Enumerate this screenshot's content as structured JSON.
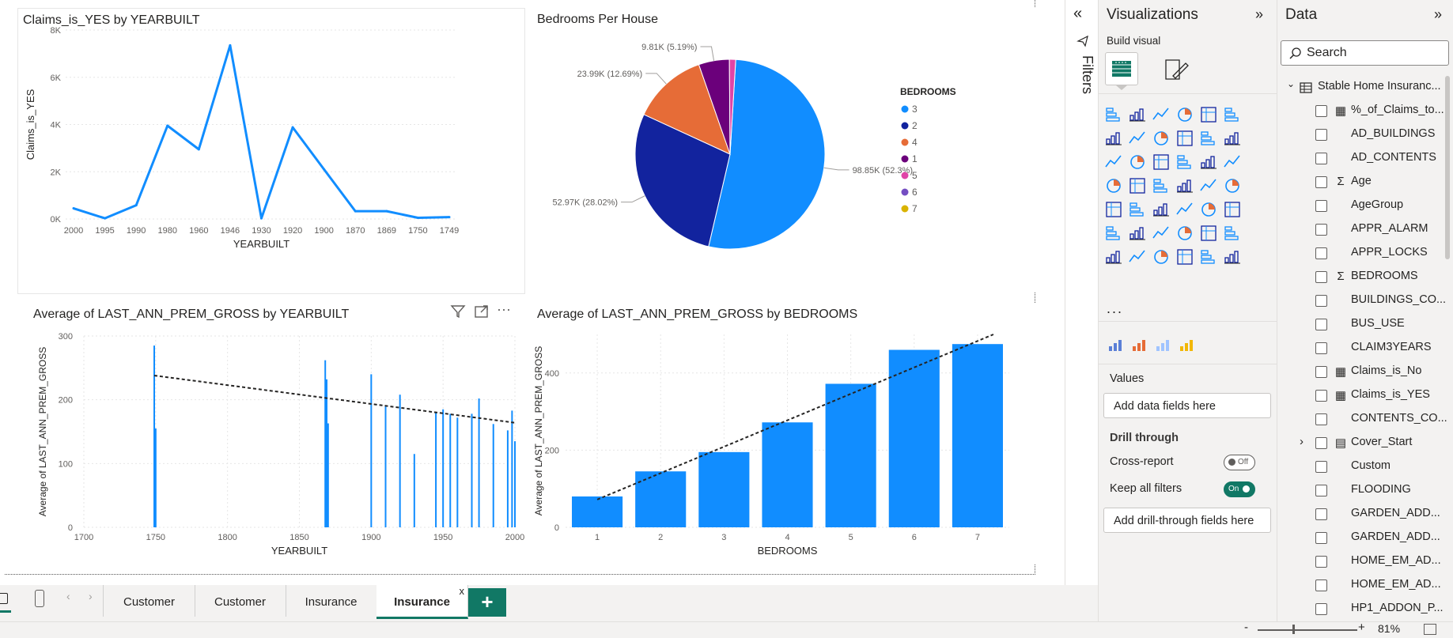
{
  "visuals": {
    "claims_line": {
      "title": "Claims_is_YES by YEARBUILT"
    },
    "bedrooms_pie": {
      "title": "Bedrooms Per House",
      "legend_title": "BEDROOMS"
    },
    "prem_yearbuilt": {
      "title": "Average of LAST_ANN_PREM_GROSS by YEARBUILT"
    },
    "prem_bedrooms": {
      "title": "Average of LAST_ANN_PREM_GROSS by BEDROOMS"
    }
  },
  "chart_data": [
    {
      "type": "line",
      "title": "Claims_is_YES by YEARBUILT",
      "xlabel": "YEARBUILT",
      "ylabel": "Claims_is_YES",
      "categories": [
        "2000",
        "1995",
        "1990",
        "1980",
        "1960",
        "1946",
        "1930",
        "1920",
        "1900",
        "1870",
        "1869",
        "1750",
        "1749"
      ],
      "values": [
        450,
        30,
        580,
        3950,
        2950,
        7350,
        30,
        3880,
        2100,
        330,
        330,
        50,
        80
      ],
      "y_ticks": [
        "0K",
        "2K",
        "4K",
        "6K",
        "8K"
      ],
      "ylim": [
        0,
        8000
      ],
      "grid": true,
      "color": "#118dff"
    },
    {
      "type": "pie",
      "title": "Bedrooms Per House",
      "legend_title": "BEDROOMS",
      "legend_position": "right",
      "slices": [
        {
          "name": "3",
          "value": 98850,
          "label": "98.85K (52.3%)",
          "color": "#118dff"
        },
        {
          "name": "2",
          "value": 52970,
          "label": "52.97K (28.02%)",
          "color": "#12239e"
        },
        {
          "name": "4",
          "value": 23990,
          "label": "23.99K (12.69%)",
          "color": "#e66c37"
        },
        {
          "name": "1",
          "value": 9810,
          "label": "9.81K (5.19%)",
          "color": "#6b007b"
        },
        {
          "name": "5",
          "value": 2000,
          "label": "",
          "color": "#e044a7"
        },
        {
          "name": "6",
          "value": 0,
          "label": "",
          "color": "#744ec2"
        },
        {
          "name": "7",
          "value": 0,
          "label": "",
          "color": "#d9b300"
        }
      ]
    },
    {
      "type": "bar",
      "title": "Average of LAST_ANN_PREM_GROSS by YEARBUILT",
      "xlabel": "YEARBUILT",
      "ylabel": "Average of LAST_ANN_PREM_GROSS",
      "x_ticks": [
        "1700",
        "1750",
        "1800",
        "1850",
        "1900",
        "1950",
        "2000"
      ],
      "y_ticks": [
        "0",
        "100",
        "200",
        "300"
      ],
      "xlim": [
        1700,
        2000
      ],
      "ylim": [
        0,
        300
      ],
      "bars": [
        {
          "x": 1749,
          "y": 285
        },
        {
          "x": 1750,
          "y": 155
        },
        {
          "x": 1868,
          "y": 262
        },
        {
          "x": 1869,
          "y": 232
        },
        {
          "x": 1870,
          "y": 163
        },
        {
          "x": 1900,
          "y": 240
        },
        {
          "x": 1910,
          "y": 190
        },
        {
          "x": 1920,
          "y": 208
        },
        {
          "x": 1930,
          "y": 115
        },
        {
          "x": 1945,
          "y": 180
        },
        {
          "x": 1950,
          "y": 185
        },
        {
          "x": 1955,
          "y": 178
        },
        {
          "x": 1960,
          "y": 172
        },
        {
          "x": 1970,
          "y": 178
        },
        {
          "x": 1975,
          "y": 202
        },
        {
          "x": 1985,
          "y": 162
        },
        {
          "x": 1995,
          "y": 152
        },
        {
          "x": 1998,
          "y": 183
        },
        {
          "x": 2000,
          "y": 135
        }
      ],
      "trend": [
        {
          "x": 1749,
          "y": 238
        },
        {
          "x": 2000,
          "y": 164
        }
      ],
      "color": "#118dff"
    },
    {
      "type": "bar",
      "title": "Average of LAST_ANN_PREM_GROSS by BEDROOMS",
      "xlabel": "BEDROOMS",
      "ylabel": "Average of LAST_ANN_PREM_GROSS",
      "categories": [
        "1",
        "2",
        "3",
        "4",
        "5",
        "6",
        "7"
      ],
      "values": [
        80,
        145,
        195,
        272,
        372,
        460,
        475
      ],
      "y_ticks": [
        "0",
        "200",
        "400"
      ],
      "ylim": [
        0,
        500
      ],
      "trend": [
        72,
        500
      ],
      "color": "#118dff"
    }
  ],
  "filters": {
    "label": "Filters"
  },
  "viz_pane": {
    "title": "Visualizations",
    "build_visual": "Build visual",
    "values_label": "Values",
    "values_placeholder": "Add data fields here",
    "drill_through": "Drill through",
    "cross_report": "Cross-report",
    "cross_report_state": "Off",
    "keep_filters": "Keep all filters",
    "keep_filters_state": "On",
    "drill_placeholder": "Add drill-through fields here",
    "more": "..."
  },
  "data_pane": {
    "title": "Data",
    "search_placeholder": "Search",
    "table_name": "Stable Home Insuranc...",
    "fields": [
      {
        "name": "%_of_Claims_to...",
        "icon": "calculator-icon"
      },
      {
        "name": "AD_BUILDINGS",
        "icon": ""
      },
      {
        "name": "AD_CONTENTS",
        "icon": ""
      },
      {
        "name": "Age",
        "icon": "sigma-icon"
      },
      {
        "name": "AgeGroup",
        "icon": ""
      },
      {
        "name": "APPR_ALARM",
        "icon": ""
      },
      {
        "name": "APPR_LOCKS",
        "icon": ""
      },
      {
        "name": "BEDROOMS",
        "icon": "sigma-icon"
      },
      {
        "name": "BUILDINGS_CO...",
        "icon": ""
      },
      {
        "name": "BUS_USE",
        "icon": ""
      },
      {
        "name": "CLAIM3YEARS",
        "icon": ""
      },
      {
        "name": "Claims_is_No",
        "icon": "calculator-icon"
      },
      {
        "name": "Claims_is_YES",
        "icon": "calculator-icon"
      },
      {
        "name": "CONTENTS_CO...",
        "icon": ""
      },
      {
        "name": "Cover_Start",
        "icon": "calendar-icon",
        "expandable": true
      },
      {
        "name": "Custom",
        "icon": ""
      },
      {
        "name": "FLOODING",
        "icon": ""
      },
      {
        "name": "GARDEN_ADD...",
        "icon": ""
      },
      {
        "name": "GARDEN_ADD...",
        "icon": ""
      },
      {
        "name": "HOME_EM_AD...",
        "icon": ""
      },
      {
        "name": "HOME_EM_AD...",
        "icon": ""
      },
      {
        "name": "HP1_ADDON_P...",
        "icon": ""
      }
    ]
  },
  "tabs": [
    {
      "label": "Customer",
      "active": false
    },
    {
      "label": "Customer",
      "active": false
    },
    {
      "label": "Insurance",
      "active": false
    },
    {
      "label": "Insurance",
      "active": true
    }
  ],
  "tab_close": "x",
  "add_tab": "+",
  "status": {
    "zoom": "81%",
    "minus": "-",
    "plus": "+"
  },
  "colors": {
    "accent": "#118dff",
    "tab_accent": "#117865",
    "toggle_on": "#117865"
  }
}
